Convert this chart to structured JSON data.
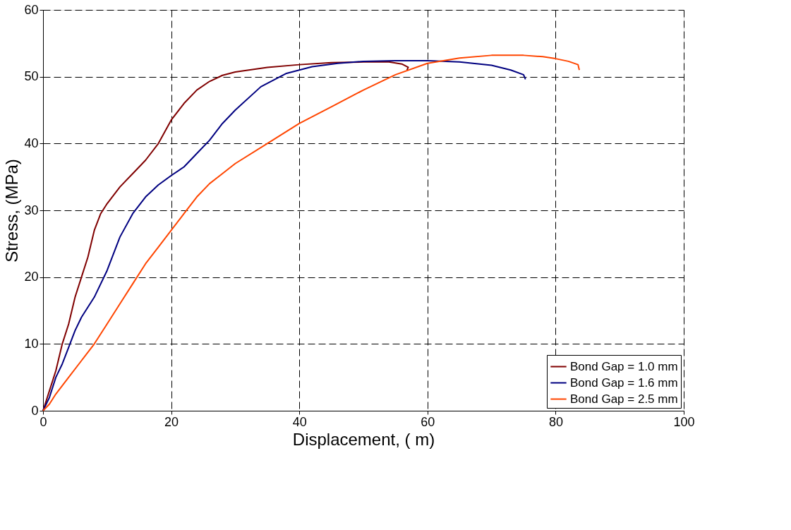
{
  "chart_data": {
    "type": "line",
    "xlabel": "Displacement, (  m)",
    "ylabel": "Stress, (MPa)",
    "xlim": [
      0,
      100
    ],
    "xticks": [
      0,
      20,
      40,
      60,
      80,
      100
    ],
    "ylim": [
      0,
      60
    ],
    "yticks": [
      0,
      10,
      20,
      30,
      40,
      50,
      60
    ],
    "grid": true,
    "line_style": "solid",
    "legend": "bottom right",
    "series": [
      {
        "name": "Bond Gap = 1.0 mm",
        "color": "#800000",
        "x": [
          0,
          1,
          2,
          3,
          4,
          5,
          6,
          7,
          8,
          9,
          10,
          12,
          14,
          16,
          18,
          20,
          22,
          24,
          26,
          28,
          30,
          35,
          40,
          45,
          50,
          54,
          56,
          57,
          56.8
        ],
        "values": [
          0,
          3,
          6,
          10,
          13,
          17,
          20,
          23,
          27,
          29.5,
          31,
          33.5,
          35.5,
          37.5,
          40,
          43.5,
          46,
          48,
          49.3,
          50.2,
          50.7,
          51.4,
          51.8,
          52.1,
          52.2,
          52.2,
          51.9,
          51.4,
          51.0
        ]
      },
      {
        "name": "Bond Gap = 1.6 mm",
        "color": "#000080",
        "x": [
          0,
          1,
          2,
          3,
          4,
          5,
          6,
          8,
          10,
          12,
          14,
          16,
          18,
          20,
          22,
          24,
          26,
          28,
          30,
          34,
          38,
          42,
          46,
          50,
          55,
          60,
          65,
          70,
          73,
          75,
          75.3
        ],
        "values": [
          0,
          2,
          5,
          7,
          9.5,
          12,
          14,
          17,
          21,
          26,
          29.5,
          32,
          33.8,
          35.2,
          36.5,
          38.5,
          40.5,
          43,
          45,
          48.5,
          50.5,
          51.5,
          52,
          52.3,
          52.4,
          52.4,
          52.2,
          51.7,
          51,
          50.3,
          49.6
        ]
      },
      {
        "name": "Bond Gap = 2.5 mm",
        "color": "#ff4500",
        "x": [
          0,
          1,
          2,
          4,
          6,
          8,
          10,
          12,
          14,
          16,
          18,
          20,
          22,
          24,
          26,
          28,
          30,
          35,
          40,
          45,
          50,
          55,
          60,
          65,
          70,
          75,
          78,
          80,
          82,
          83.5,
          83.7
        ],
        "values": [
          0,
          1,
          2.5,
          5,
          7.5,
          10,
          13,
          16,
          19,
          22,
          24.5,
          27,
          29.5,
          32,
          34,
          35.5,
          37,
          40,
          43,
          45.5,
          48,
          50.3,
          52,
          52.8,
          53.2,
          53.2,
          53,
          52.7,
          52.3,
          51.8,
          51
        ]
      }
    ]
  }
}
